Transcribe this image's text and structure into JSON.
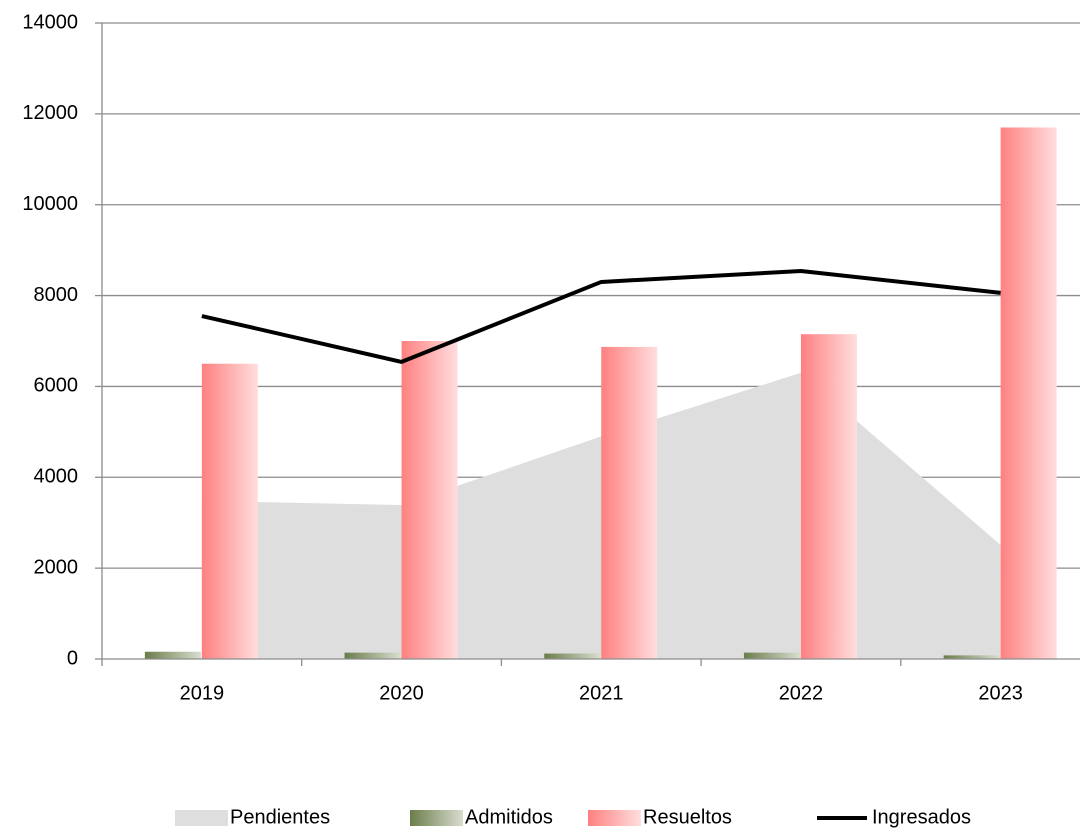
{
  "chart_data": {
    "type": "combo",
    "categories": [
      "2019",
      "2020",
      "2021",
      "2022",
      "2023"
    ],
    "series": [
      {
        "name": "Pendientes",
        "type": "area",
        "color": "#dedede",
        "values": [
          3480,
          3390,
          4900,
          6300,
          2510
        ]
      },
      {
        "name": "Admitidos",
        "type": "bar",
        "color": "#6b7d4a",
        "values": [
          160,
          140,
          120,
          140,
          80
        ]
      },
      {
        "name": "Resueltos",
        "type": "bar",
        "color": "#ff8080",
        "values": [
          6500,
          7000,
          6870,
          7150,
          11700
        ]
      },
      {
        "name": "Ingresados",
        "type": "line",
        "color": "#000000",
        "values": [
          7550,
          6540,
          8300,
          8540,
          8060
        ]
      }
    ],
    "ylim": [
      0,
      14000
    ],
    "yticks": [
      0,
      2000,
      4000,
      6000,
      8000,
      10000,
      12000,
      14000
    ],
    "grid": true,
    "legend": "bottom"
  }
}
